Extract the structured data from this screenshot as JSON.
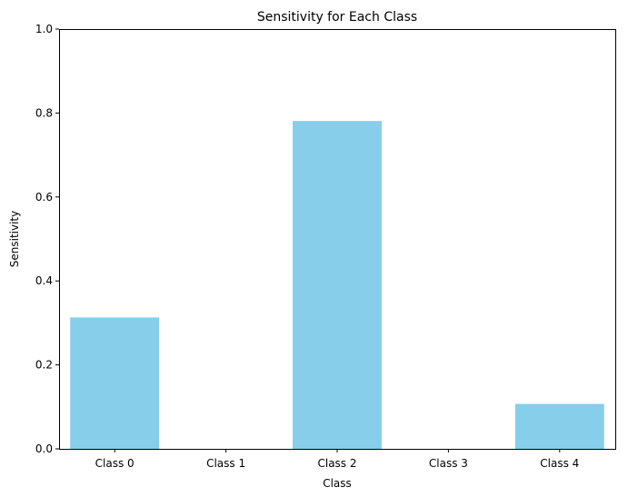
{
  "chart_data": {
    "type": "bar",
    "title": "Sensitivity for Each Class",
    "xlabel": "Class",
    "ylabel": "Sensitivity",
    "categories": [
      "Class 0",
      "Class 1",
      "Class 2",
      "Class 3",
      "Class 4"
    ],
    "values": [
      0.313,
      0.0,
      0.781,
      0.0,
      0.107
    ],
    "ylim": [
      0,
      1.0
    ],
    "yticks": [
      "0.0",
      "0.2",
      "0.4",
      "0.6",
      "0.8",
      "1.0"
    ],
    "bar_color": "#87ceeb",
    "grid": false,
    "legend": "none"
  }
}
